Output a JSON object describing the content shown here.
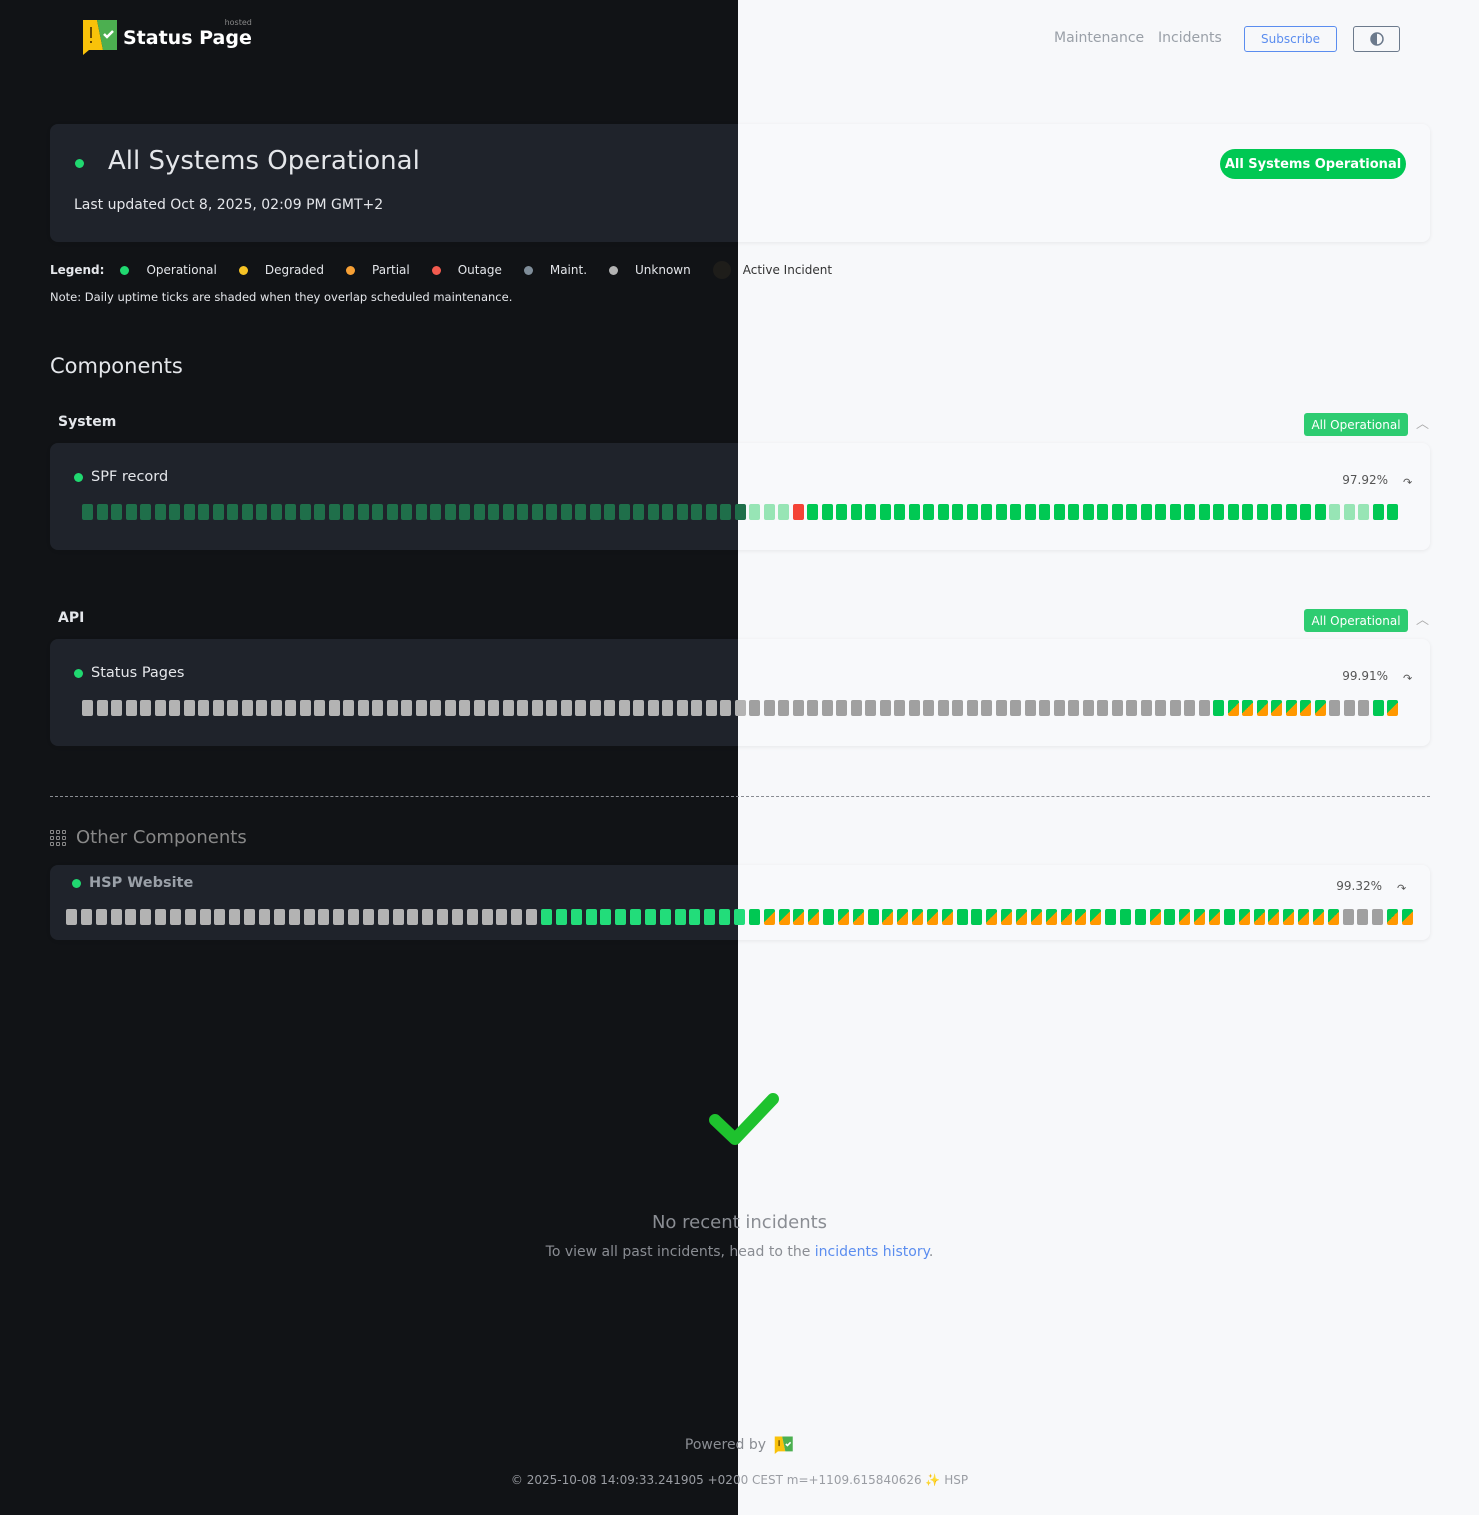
{
  "header": {
    "logo_text": "Status Page",
    "logo_badge": "hosted",
    "nav": [
      "Maintenance",
      "Incidents"
    ],
    "subscribe_label": "Subscribe",
    "theme_toggle_icon": "half-circle-contrast-icon"
  },
  "status": {
    "title": "All Systems Operational",
    "last_updated": "Last updated Oct 8, 2025, 02:09 PM GMT+2",
    "pill": "All Systems Operational"
  },
  "legend": {
    "label": "Legend:",
    "items": [
      {
        "label": "Operational",
        "color": "#20d870"
      },
      {
        "label": "Degraded",
        "color": "#f7c325"
      },
      {
        "label": "Partial",
        "color": "#f7a035"
      },
      {
        "label": "Outage",
        "color": "#f35b4f"
      },
      {
        "label": "Maint.",
        "color": "#7f8d99"
      },
      {
        "label": "Unknown",
        "color": "#b3b3b3"
      },
      {
        "label": "Active Incident",
        "color": "#1e1d1a"
      }
    ],
    "note": "Note: Daily uptime ticks are shaded when they overlap scheduled maintenance."
  },
  "components_title": "Components",
  "tick_codes": {
    "o": "operational",
    "m": "operational (maintenance shaded)",
    "x": "outage",
    "p": "partial",
    "u": "unknown"
  },
  "groups": [
    {
      "name": "System",
      "status": "All Operational",
      "components": [
        {
          "name": "SPF record",
          "uptime": "97.92%",
          "ticks": "oooooooooooooooooooooooooooooooooooooooooooooommmxoooooooooooooooooooooooooooooooooooommmoo"
        }
      ]
    },
    {
      "name": "API",
      "status": "All Operational",
      "components": [
        {
          "name": "Status Pages",
          "uptime": "99.91%",
          "ticks": "uuuuuuuuuuuuuuuuuuuuuuuuuuuuuuuuuuuuuuuuuuuuuuuuuuuuuuuuuuuuuuuuuuuuuuuuuuuuuuopppppppuuuop"
        }
      ]
    }
  ],
  "other": {
    "title": "Other Components",
    "components": [
      {
        "name": "HSP Website",
        "uptime": "99.32%",
        "ticks": "uuuuuuuuuuuuuuuuuuuuuuuuuuuuuuuuoooooooooooooooppppoppopppppooppppppppooopopppopppppppuuupp"
      }
    ]
  },
  "incidents": {
    "title": "No recent incidents",
    "sub_prefix": "To view all past incidents, head to the ",
    "link": "incidents history",
    "sub_suffix": "."
  },
  "footer": {
    "powered_by": "Powered by",
    "build": "© 2025-10-08 14:09:33.241905 +0200 CEST m=+1109.615840626 ✨ HSP"
  }
}
